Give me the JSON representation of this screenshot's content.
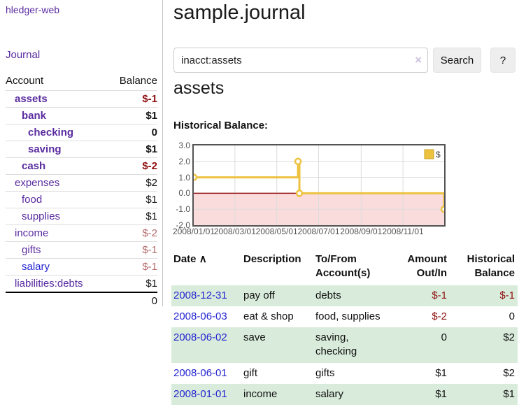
{
  "colors": {
    "link_purple": "#5A2CA0",
    "link_blue": "#2525D2",
    "negative_strong": "#8F1010",
    "negative_soft": "#B56A6A",
    "row_green": "#d9ecdb",
    "chart_line_yellow": "#EDC240",
    "chart_negative_fill": "#FBDCDC",
    "chart_zero_line_red": "#991717",
    "chart_border": "#545454"
  },
  "sidebar": {
    "brand": "hledger-web",
    "nav_journal": "Journal",
    "accounts_table": {
      "col_account": "Account",
      "col_balance": "Balance",
      "rows": [
        {
          "name": "assets",
          "balance": "$-1",
          "depth": 0,
          "strong": true,
          "name_color": "purple",
          "bal": "negstrong"
        },
        {
          "name": "bank",
          "balance": "$1",
          "depth": 1,
          "strong": true,
          "name_color": "purple",
          "bal": "plain"
        },
        {
          "name": "checking",
          "balance": "0",
          "depth": 2,
          "strong": true,
          "name_color": "purple",
          "bal": "plain"
        },
        {
          "name": "saving",
          "balance": "$1",
          "depth": 2,
          "strong": true,
          "name_color": "purple",
          "bal": "plain"
        },
        {
          "name": "cash",
          "balance": "$-2",
          "depth": 1,
          "strong": true,
          "name_color": "purple",
          "bal": "negstrong"
        },
        {
          "name": "expenses",
          "balance": "$2",
          "depth": 0,
          "strong": false,
          "name_color": "purple",
          "bal": "plain"
        },
        {
          "name": "food",
          "balance": "$1",
          "depth": 1,
          "strong": false,
          "name_color": "purple",
          "bal": "plain"
        },
        {
          "name": "supplies",
          "balance": "$1",
          "depth": 1,
          "strong": false,
          "name_color": "purple",
          "bal": "plain"
        },
        {
          "name": "income",
          "balance": "$-2",
          "depth": 0,
          "strong": false,
          "name_color": "purple",
          "bal": "negsoft"
        },
        {
          "name": "gifts",
          "balance": "$-1",
          "depth": 1,
          "strong": false,
          "name_color": "purple",
          "bal": "negsoft"
        },
        {
          "name": "salary",
          "balance": "$-1",
          "depth": 1,
          "strong": false,
          "name_color": "blue",
          "bal": "negsoft"
        },
        {
          "name": "liabilities:debts",
          "balance": "$1",
          "depth": 0,
          "strong": false,
          "name_color": "purple",
          "bal": "plain"
        }
      ],
      "total": "0"
    }
  },
  "main": {
    "title": "sample.journal",
    "search": {
      "value": "inacct:assets",
      "clear_icon": "×",
      "button": "Search",
      "help_button": "?"
    },
    "account_heading": "assets",
    "chart_label": "Historical Balance:"
  },
  "chart_data": {
    "type": "line",
    "title": "Historical Balance",
    "step": true,
    "series": [
      {
        "name": "$",
        "x_dates": [
          "2008/01/01",
          "2008/06/01",
          "2008/06/03",
          "2008/12/31"
        ],
        "x_days": [
          0,
          152,
          154,
          365
        ],
        "values": [
          1,
          2,
          0,
          -1
        ]
      }
    ],
    "xlim_days": [
      0,
      365
    ],
    "ylim": [
      -2,
      3
    ],
    "yticks": [
      {
        "label": "3.0",
        "value": 3
      },
      {
        "label": "2.0",
        "value": 2
      },
      {
        "label": "1.0",
        "value": 1
      },
      {
        "label": "0.0",
        "value": 0
      },
      {
        "label": "-1.0",
        "value": -1
      },
      {
        "label": "-2.0",
        "value": -2
      }
    ],
    "xticks": [
      {
        "label": "2008/01/01",
        "day": 0
      },
      {
        "label": "2008/03/01",
        "day": 60
      },
      {
        "label": "2008/05/01",
        "day": 121
      },
      {
        "label": "2008/07/01",
        "day": 182
      },
      {
        "label": "2008/09/01",
        "day": 244
      },
      {
        "label": "2008/11/01",
        "day": 305
      }
    ],
    "legend": {
      "label": "$",
      "position": "top-right"
    },
    "grid": true,
    "negative_region_shaded": true
  },
  "register": {
    "columns": [
      {
        "line1": "Date",
        "line2": "",
        "sort": "∧",
        "align": "left"
      },
      {
        "line1": "Description",
        "line2": "",
        "align": "left"
      },
      {
        "line1": "To/From",
        "line2": "Account(s)",
        "align": "left"
      },
      {
        "line1": "Amount",
        "line2": "Out/In",
        "align": "right"
      },
      {
        "line1": "Historical",
        "line2": "Balance",
        "align": "right"
      }
    ],
    "rows": [
      {
        "date": "2008-12-31",
        "description": "pay off",
        "accounts": "debts",
        "amount": "$-1",
        "balance": "$-1"
      },
      {
        "date": "2008-06-03",
        "description": "eat & shop",
        "accounts": "food, supplies",
        "amount": "$-2",
        "balance": "0"
      },
      {
        "date": "2008-06-02",
        "description": "save",
        "accounts": "saving, checking",
        "amount": "0",
        "balance": "$2"
      },
      {
        "date": "2008-06-01",
        "description": "gift",
        "accounts": "gifts",
        "amount": "$1",
        "balance": "$2"
      },
      {
        "date": "2008-01-01",
        "description": "income",
        "accounts": "salary",
        "amount": "$1",
        "balance": "$1"
      }
    ]
  }
}
